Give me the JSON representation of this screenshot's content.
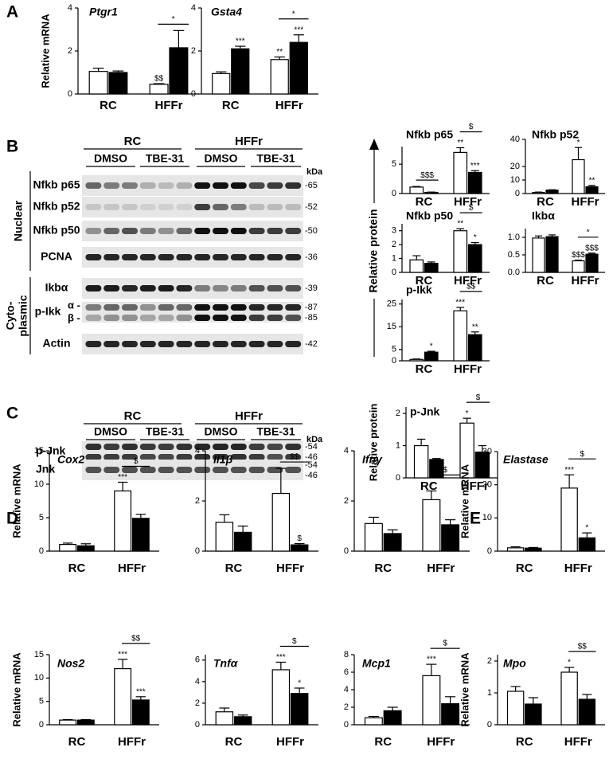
{
  "panels": [
    "A",
    "B",
    "C",
    "D",
    "E"
  ],
  "protein_axis_label": "Relative protein",
  "blots": [
    {
      "groups": [
        "RC",
        "HFFr"
      ],
      "treatments": [
        "DMSO",
        "TBE-31",
        "DMSO",
        "TBE-31"
      ],
      "unit": "kDa",
      "sections": [
        [
          "Nuclear"
        ],
        [
          "Cyto-",
          "plasmic"
        ]
      ],
      "rows": [
        {
          "label": "Nfkb p65",
          "kda": [
            "-65"
          ]
        },
        {
          "label": "Nfkb p52",
          "kda": [
            "-52"
          ]
        },
        {
          "label": "Nfkb p50",
          "kda": [
            "-50"
          ]
        },
        {
          "label": "PCNA",
          "kda": [
            "-36"
          ]
        },
        {
          "label": "Ikbα",
          "kda": [
            "-39"
          ]
        },
        {
          "label": "p-Ikk",
          "sublabels": [
            "α -",
            "β -"
          ],
          "kda": [
            "-87",
            "-85"
          ]
        },
        {
          "label": "Actin",
          "kda": [
            "-42"
          ]
        }
      ]
    },
    {
      "groups": [
        "RC",
        "HFFr"
      ],
      "treatments": [
        "DMSO",
        "TBE-31",
        "DMSO",
        "TBE-31"
      ],
      "unit": "kDa",
      "rows": [
        {
          "label": "p-Jnk",
          "kda": [
            "-54",
            "-46"
          ]
        },
        {
          "label": "Jnk",
          "kda": [
            "-54",
            "-46"
          ]
        }
      ]
    }
  ],
  "chart_data": [
    {
      "type": "bar",
      "title": "Ptgr1",
      "ylabel": "Relative mRNA",
      "categories": [
        "RC",
        "HFFr"
      ],
      "ylim": [
        0,
        4
      ],
      "yticks": [
        0,
        2,
        4
      ],
      "series": [
        {
          "color": "#ffffff",
          "values": [
            1.05,
            0.45
          ],
          "errors": [
            0.15,
            0.03
          ],
          "marks": [
            null,
            "$$"
          ]
        },
        {
          "color": "#000000",
          "values": [
            1.0,
            2.15
          ],
          "errors": [
            0.07,
            0.8
          ]
        }
      ],
      "brackets": [
        null,
        "*"
      ]
    },
    {
      "type": "bar",
      "title": "Gsta4",
      "categories": [
        "RC",
        "HFFr"
      ],
      "ylim": [
        0,
        4
      ],
      "yticks": [
        0,
        2,
        4
      ],
      "series": [
        {
          "color": "#ffffff",
          "values": [
            0.95,
            1.6
          ],
          "errors": [
            0.08,
            0.12
          ],
          "marks": [
            null,
            "**"
          ]
        },
        {
          "color": "#000000",
          "values": [
            2.1,
            2.4
          ],
          "errors": [
            0.12,
            0.35
          ],
          "marks": [
            "***",
            "***"
          ]
        }
      ],
      "brackets": [
        null,
        "*"
      ]
    },
    {
      "type": "bar",
      "title": "Nfkb p65",
      "categories": [
        "RC",
        "HFFr"
      ],
      "ylim": [
        0,
        8
      ],
      "yticks": [
        0,
        5
      ],
      "series": [
        {
          "color": "#ffffff",
          "values": [
            1.1,
            7
          ],
          "errors": [
            0.1,
            0.8
          ],
          "marks": [
            null,
            "**"
          ]
        },
        {
          "color": "#000000",
          "values": [
            0.2,
            3.6
          ],
          "errors": [
            0.05,
            0.3
          ],
          "marks": [
            null,
            "***"
          ]
        }
      ],
      "brackets": [
        "$$$",
        "$"
      ]
    },
    {
      "type": "bar",
      "title": "Nfkb p52",
      "categories": [
        "RC",
        "HFFr"
      ],
      "ylim": [
        0,
        40
      ],
      "yticks": [
        0,
        10,
        20,
        40
      ],
      "series": [
        {
          "color": "#ffffff",
          "values": [
            0.8,
            25
          ],
          "errors": [
            0.3,
            9
          ],
          "marks": [
            null,
            "*"
          ]
        },
        {
          "color": "#000000",
          "values": [
            2.5,
            5
          ],
          "errors": [
            0.3,
            1
          ],
          "marks": [
            null,
            "**"
          ]
        }
      ]
    },
    {
      "type": "bar",
      "title": "Nfkb p50",
      "categories": [
        "RC",
        "HFFr"
      ],
      "ylim": [
        0,
        3.5
      ],
      "yticks": [
        0,
        1,
        2,
        3
      ],
      "series": [
        {
          "color": "#ffffff",
          "values": [
            0.9,
            3
          ],
          "errors": [
            0.3,
            0.15
          ],
          "marks": [
            null,
            "**"
          ]
        },
        {
          "color": "#000000",
          "values": [
            0.65,
            2
          ],
          "errors": [
            0.1,
            0.15
          ],
          "marks": [
            null,
            "*"
          ]
        }
      ],
      "brackets": [
        null,
        "$"
      ]
    },
    {
      "type": "bar",
      "title": "Ikbα",
      "categories": [
        "RC",
        "HFFr"
      ],
      "ylim": [
        0,
        1.25
      ],
      "yticks": [
        {
          "value": 0,
          "label": "0.0"
        },
        {
          "value": 0.5,
          "label": "0.5"
        },
        {
          "value": 1,
          "label": "1.0"
        }
      ],
      "series": [
        {
          "color": "#ffffff",
          "values": [
            0.98,
            0.33
          ],
          "errors": [
            0.06,
            0.02
          ],
          "marks": [
            null,
            "$$$"
          ]
        },
        {
          "color": "#000000",
          "values": [
            1.02,
            0.52
          ],
          "errors": [
            0.05,
            0.03
          ],
          "marks": [
            null,
            "$$$"
          ]
        }
      ],
      "brackets": [
        null,
        "*"
      ]
    },
    {
      "type": "bar",
      "title": "p-Ikk",
      "categories": [
        "RC",
        "HFFr"
      ],
      "ylim": [
        0,
        27
      ],
      "yticks": [
        0,
        5,
        15,
        25
      ],
      "series": [
        {
          "color": "#ffffff",
          "values": [
            0.6,
            22
          ],
          "errors": [
            0.2,
            1.5
          ],
          "marks": [
            null,
            "***"
          ]
        },
        {
          "color": "#000000",
          "values": [
            3.8,
            11.5
          ],
          "errors": [
            0.4,
            1.2
          ],
          "marks": [
            "*",
            "**"
          ]
        }
      ],
      "brackets": [
        null,
        "$$"
      ]
    },
    {
      "type": "bar",
      "title": "p-Jnk",
      "ylabel": "Relative protein",
      "categories": [
        "RC",
        "HFFr"
      ],
      "ylim": [
        0,
        2.2
      ],
      "yticks": [
        0,
        1,
        2
      ],
      "series": [
        {
          "color": "#ffffff",
          "values": [
            1.0,
            1.7
          ],
          "errors": [
            0.2,
            0.15
          ],
          "marks": [
            null,
            "*"
          ]
        },
        {
          "color": "#000000",
          "values": [
            0.57,
            0.8
          ],
          "errors": [
            0.03,
            0.2
          ]
        }
      ],
      "brackets": [
        null,
        "$"
      ]
    },
    {
      "type": "bar",
      "title": "Cox2",
      "ylabel": "Relative mRNA",
      "categories": [
        "RC",
        "HFFr"
      ],
      "ylim": [
        0,
        15
      ],
      "yticks": [
        0,
        5,
        10,
        15
      ],
      "series": [
        {
          "color": "#ffffff",
          "values": [
            1.0,
            9
          ],
          "errors": [
            0.2,
            1.3
          ],
          "marks": [
            null,
            "***"
          ]
        },
        {
          "color": "#000000",
          "values": [
            0.8,
            4.9
          ],
          "errors": [
            0.3,
            0.6
          ]
        }
      ],
      "brackets": [
        null,
        "$"
      ]
    },
    {
      "type": "bar",
      "title": "Il1β",
      "categories": [
        "RC",
        "HFFr"
      ],
      "ylim": [
        0,
        4
      ],
      "yticks": [
        0,
        2,
        4
      ],
      "series": [
        {
          "color": "#ffffff",
          "values": [
            1.15,
            2.3
          ],
          "errors": [
            0.3,
            1
          ]
        },
        {
          "color": "#000000",
          "values": [
            0.75,
            0.25
          ],
          "errors": [
            0.25,
            0.05
          ],
          "marks": [
            null,
            "$"
          ]
        }
      ],
      "brackets": [
        null,
        "$$"
      ]
    },
    {
      "type": "bar",
      "title": "Ifnγ",
      "categories": [
        "RC",
        "HFFr"
      ],
      "ylim": [
        0,
        4
      ],
      "yticks": [
        0,
        2,
        4
      ],
      "series": [
        {
          "color": "#ffffff",
          "values": [
            1.1,
            2.05
          ],
          "errors": [
            0.25,
            0.35
          ],
          "marks": [
            null,
            "*"
          ]
        },
        {
          "color": "#000000",
          "values": [
            0.7,
            1.05
          ],
          "errors": [
            0.15,
            0.2
          ]
        }
      ],
      "brackets": [
        null,
        "$"
      ]
    },
    {
      "type": "bar",
      "title": "Nos2",
      "ylabel": "Relative mRNA",
      "categories": [
        "RC",
        "HFFr"
      ],
      "ylim": [
        0,
        15
      ],
      "yticks": [
        0,
        5,
        10,
        15
      ],
      "series": [
        {
          "color": "#ffffff",
          "values": [
            1.0,
            12
          ],
          "errors": [
            0.1,
            2
          ],
          "marks": [
            null,
            "***"
          ]
        },
        {
          "color": "#000000",
          "values": [
            1.0,
            5.3
          ],
          "errors": [
            0.1,
            0.7
          ],
          "marks": [
            null,
            "***"
          ]
        }
      ],
      "brackets": [
        null,
        "$$"
      ]
    },
    {
      "type": "bar",
      "title": "Tnfα",
      "categories": [
        "RC",
        "HFFr"
      ],
      "ylim": [
        0,
        6.5
      ],
      "yticks": [
        0,
        2,
        4,
        6
      ],
      "series": [
        {
          "color": "#ffffff",
          "values": [
            1.2,
            5.1
          ],
          "errors": [
            0.35,
            0.7
          ],
          "marks": [
            null,
            "***"
          ]
        },
        {
          "color": "#000000",
          "values": [
            0.75,
            2.9
          ],
          "errors": [
            0.15,
            0.5
          ],
          "marks": [
            null,
            "*"
          ]
        }
      ],
      "brackets": [
        null,
        "$"
      ]
    },
    {
      "type": "bar",
      "title": "Mcp1",
      "categories": [
        "RC",
        "HFFr"
      ],
      "ylim": [
        0,
        8
      ],
      "yticks": [
        0,
        2,
        4,
        6,
        8
      ],
      "series": [
        {
          "color": "#ffffff",
          "values": [
            0.8,
            5.6
          ],
          "errors": [
            0.15,
            1.3
          ],
          "marks": [
            null,
            "***"
          ]
        },
        {
          "color": "#000000",
          "values": [
            1.6,
            2.4
          ],
          "errors": [
            0.4,
            0.8
          ]
        }
      ],
      "brackets": [
        null,
        "$"
      ]
    },
    {
      "type": "bar",
      "title": "Elastase",
      "ylabel": "Relative mRNA",
      "categories": [
        "RC",
        "HFFr"
      ],
      "ylim": [
        0,
        30
      ],
      "yticks": [
        0,
        10,
        20,
        30
      ],
      "series": [
        {
          "color": "#ffffff",
          "values": [
            1,
            19
          ],
          "errors": [
            0.3,
            4
          ],
          "marks": [
            null,
            "***"
          ]
        },
        {
          "color": "#000000",
          "values": [
            0.9,
            4
          ],
          "errors": [
            0.2,
            1.5
          ],
          "marks": [
            null,
            "*"
          ]
        }
      ],
      "brackets": [
        null,
        "$"
      ]
    },
    {
      "type": "bar",
      "title": "Mpo",
      "ylabel": "Relative mRNA",
      "categories": [
        "RC",
        "HFFr"
      ],
      "ylim": [
        0,
        2.2
      ],
      "yticks": [
        0,
        1,
        2
      ],
      "series": [
        {
          "color": "#ffffff",
          "values": [
            1.05,
            1.65
          ],
          "errors": [
            0.15,
            0.15
          ],
          "marks": [
            null,
            "*"
          ]
        },
        {
          "color": "#000000",
          "values": [
            0.65,
            0.8
          ],
          "errors": [
            0.2,
            0.15
          ]
        }
      ],
      "brackets": [
        null,
        "$$"
      ]
    }
  ]
}
